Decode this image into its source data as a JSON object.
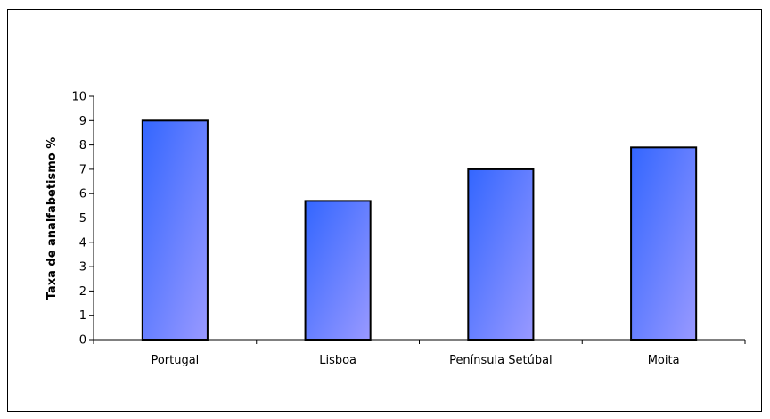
{
  "chart_data": {
    "type": "bar",
    "title": "",
    "xlabel": "",
    "ylabel": "Taxa de analfabetismo %",
    "categories": [
      "Portugal",
      "Lisboa",
      "Península Setúbal",
      "Moita"
    ],
    "values": [
      9.0,
      5.7,
      7.0,
      7.9
    ],
    "ylim": [
      0,
      10
    ],
    "yticks": [
      "0",
      "1",
      "2",
      "3",
      "4",
      "5",
      "6",
      "7",
      "8",
      "9",
      "10"
    ],
    "grid": false,
    "legend": "none",
    "colors": {
      "bar_gradient_start": "#3366ff",
      "bar_gradient_end": "#9999ff",
      "bar_border": "#000000"
    }
  }
}
